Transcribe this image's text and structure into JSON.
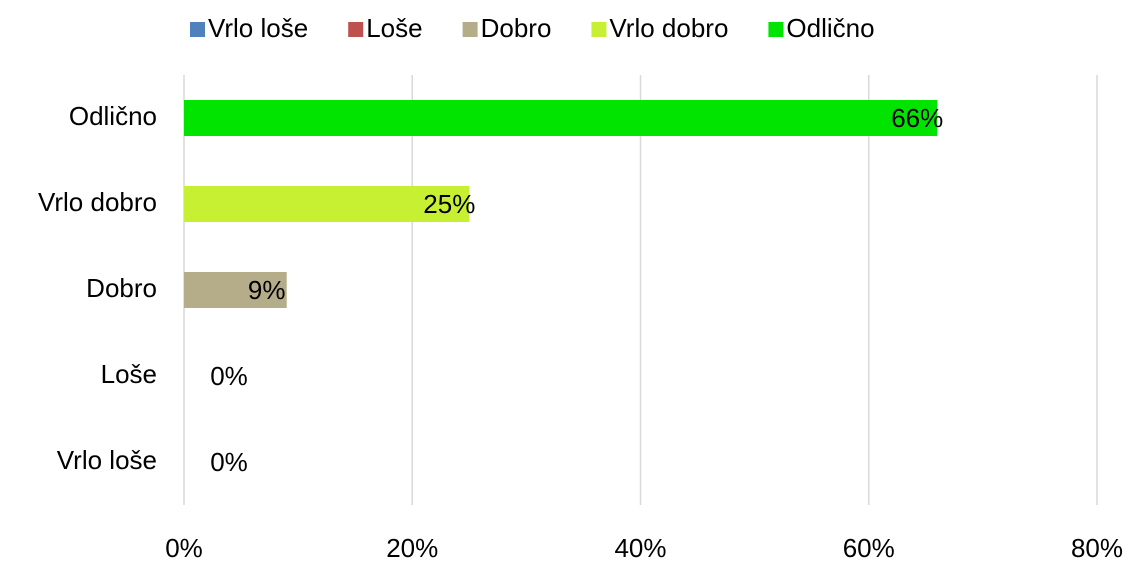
{
  "chart_data": {
    "type": "bar",
    "orientation": "horizontal",
    "categories": [
      "Vrlo loše",
      "Loše",
      "Dobro",
      "Vrlo dobro",
      "Odlično"
    ],
    "series": [
      {
        "name": "Vrlo loše",
        "color": "#4f81bd",
        "values": [
          0,
          null,
          null,
          null,
          null
        ],
        "value_labels": [
          "0%",
          null,
          null,
          null,
          null
        ]
      },
      {
        "name": "Loše",
        "color": "#c0504d",
        "values": [
          null,
          0,
          null,
          null,
          null
        ],
        "value_labels": [
          null,
          "0%",
          null,
          null,
          null
        ]
      },
      {
        "name": "Dobro",
        "color": "#b5ad89",
        "values": [
          null,
          null,
          9,
          null,
          null
        ],
        "value_labels": [
          null,
          null,
          "9%",
          null,
          null
        ]
      },
      {
        "name": "Vrlo dobro",
        "color": "#c8f032",
        "values": [
          null,
          null,
          null,
          25,
          null
        ],
        "value_labels": [
          null,
          null,
          null,
          "25%",
          null
        ]
      },
      {
        "name": "Odlično",
        "color": "#00e400",
        "values": [
          null,
          null,
          null,
          null,
          66
        ],
        "value_labels": [
          null,
          null,
          null,
          null,
          "66%"
        ]
      }
    ],
    "xlim": [
      0,
      80
    ],
    "xticks": [
      {
        "value": 0,
        "label": "0%"
      },
      {
        "value": 20,
        "label": "20%"
      },
      {
        "value": 40,
        "label": "40%"
      },
      {
        "value": 60,
        "label": "60%"
      },
      {
        "value": 80,
        "label": "80%"
      }
    ],
    "grid": true,
    "legend": "top"
  }
}
